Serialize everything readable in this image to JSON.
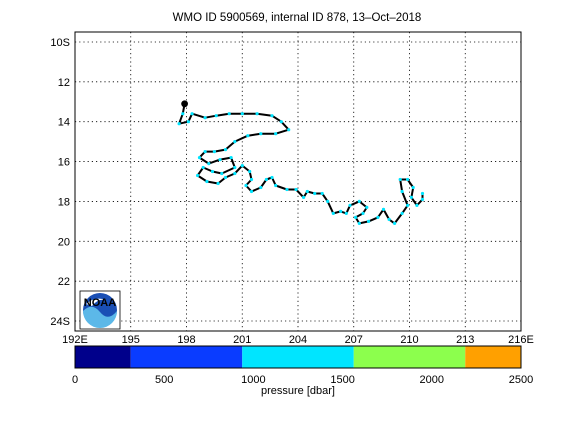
{
  "title": "WMO ID 5900569, internal ID 878, 13–Oct–2018",
  "map": {
    "lon_range": [
      192,
      216
    ],
    "lat_range": [
      -24.5,
      -9.5
    ],
    "lon_ticks": [
      192,
      195,
      198,
      201,
      204,
      207,
      210,
      213,
      216
    ],
    "lon_tick_labels": [
      "192E",
      "195",
      "198",
      "201",
      "204",
      "207",
      "210",
      "213",
      "216E"
    ],
    "lat_ticks": [
      -10,
      -12,
      -14,
      -16,
      -18,
      -20,
      -22,
      -24
    ],
    "lat_tick_labels": [
      "10S",
      "12",
      "14",
      "16",
      "18",
      "20",
      "22",
      "24S"
    ],
    "grid": true,
    "logo_text": "NOAA",
    "logo_icon": "noaa-logo-icon",
    "track_color": "#000000",
    "marker_color": "#00e5ff",
    "track": [
      [
        197.9,
        -13.1
      ],
      [
        197.8,
        -13.6
      ],
      [
        197.6,
        -14.1
      ],
      [
        198.1,
        -14.0
      ],
      [
        198.3,
        -13.6
      ],
      [
        199.0,
        -13.8
      ],
      [
        199.6,
        -13.7
      ],
      [
        200.3,
        -13.6
      ],
      [
        201.0,
        -13.6
      ],
      [
        201.8,
        -13.6
      ],
      [
        202.6,
        -13.7
      ],
      [
        203.1,
        -14.0
      ],
      [
        203.5,
        -14.4
      ],
      [
        202.8,
        -14.6
      ],
      [
        202.0,
        -14.6
      ],
      [
        201.3,
        -14.7
      ],
      [
        200.6,
        -15.0
      ],
      [
        200.1,
        -15.4
      ],
      [
        199.5,
        -15.5
      ],
      [
        199.0,
        -15.5
      ],
      [
        198.7,
        -15.8
      ],
      [
        199.2,
        -16.1
      ],
      [
        199.8,
        -15.9
      ],
      [
        200.4,
        -15.8
      ],
      [
        200.6,
        -16.3
      ],
      [
        199.9,
        -16.6
      ],
      [
        199.4,
        -16.5
      ],
      [
        198.9,
        -16.3
      ],
      [
        198.6,
        -16.7
      ],
      [
        199.1,
        -17.0
      ],
      [
        199.7,
        -17.1
      ],
      [
        200.1,
        -16.8
      ],
      [
        200.6,
        -16.6
      ],
      [
        201.0,
        -16.2
      ],
      [
        201.4,
        -16.5
      ],
      [
        201.5,
        -16.9
      ],
      [
        201.2,
        -17.2
      ],
      [
        201.5,
        -17.5
      ],
      [
        202.0,
        -17.3
      ],
      [
        202.3,
        -16.9
      ],
      [
        202.6,
        -16.8
      ],
      [
        202.8,
        -17.2
      ],
      [
        203.4,
        -17.4
      ],
      [
        203.9,
        -17.4
      ],
      [
        204.3,
        -17.8
      ],
      [
        204.5,
        -17.5
      ],
      [
        204.9,
        -17.6
      ],
      [
        205.3,
        -17.6
      ],
      [
        205.6,
        -18.0
      ],
      [
        205.9,
        -18.6
      ],
      [
        206.3,
        -18.5
      ],
      [
        206.6,
        -18.6
      ],
      [
        206.8,
        -18.2
      ],
      [
        207.3,
        -18.0
      ],
      [
        207.7,
        -18.3
      ],
      [
        207.5,
        -18.6
      ],
      [
        207.1,
        -18.8
      ],
      [
        207.3,
        -19.1
      ],
      [
        207.8,
        -19.0
      ],
      [
        208.3,
        -18.8
      ],
      [
        208.6,
        -18.4
      ],
      [
        208.9,
        -18.9
      ],
      [
        209.2,
        -19.1
      ],
      [
        209.6,
        -18.6
      ],
      [
        209.9,
        -18.2
      ],
      [
        209.6,
        -17.5
      ],
      [
        209.5,
        -16.9
      ],
      [
        209.9,
        -16.9
      ],
      [
        210.2,
        -17.3
      ],
      [
        210.1,
        -17.8
      ],
      [
        210.4,
        -18.2
      ],
      [
        210.7,
        -17.9
      ],
      [
        210.7,
        -17.6
      ]
    ]
  },
  "colorbar": {
    "label": "pressure [dbar]",
    "range": [
      0,
      2500
    ],
    "ticks": [
      0,
      500,
      1000,
      1500,
      2000,
      2500
    ],
    "tick_labels": [
      "0",
      "500",
      "1000",
      "1500",
      "2000",
      "2500"
    ],
    "segments": [
      {
        "from": 0,
        "to": 312.5,
        "color": "#00008b"
      },
      {
        "from": 312.5,
        "to": 937.5,
        "color": "#0a3cff"
      },
      {
        "from": 937.5,
        "to": 1562.5,
        "color": "#00e5ff"
      },
      {
        "from": 1562.5,
        "to": 2187.5,
        "color": "#8cff4d"
      },
      {
        "from": 2187.5,
        "to": 2500,
        "color": "#ffa000"
      }
    ]
  }
}
